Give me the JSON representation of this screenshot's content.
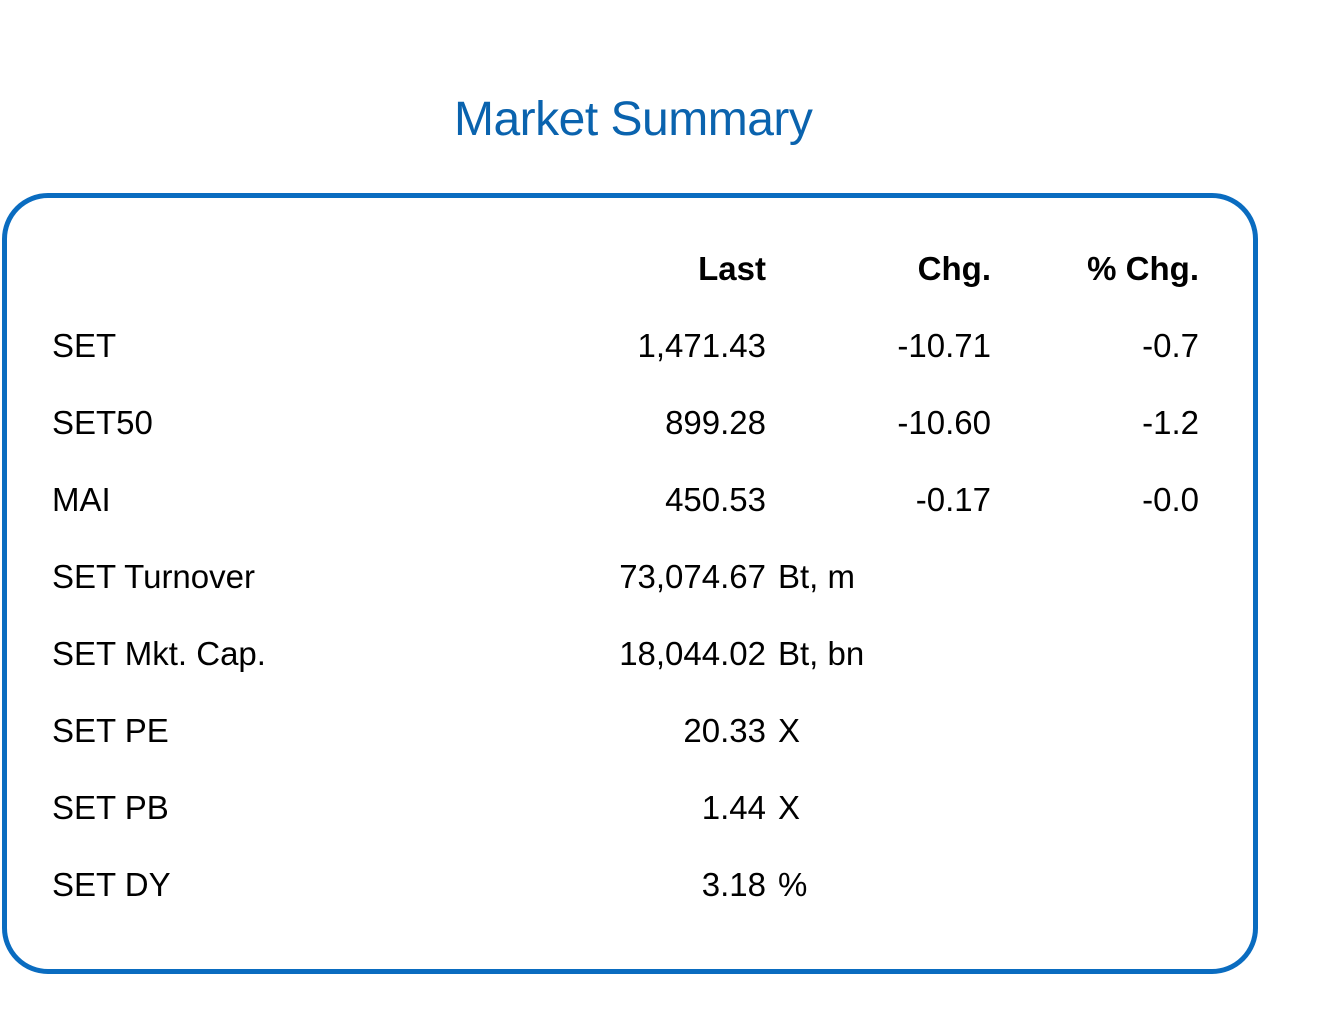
{
  "title": "Market Summary",
  "header": {
    "last": "Last",
    "chg": "Chg.",
    "pct_chg": "% Chg."
  },
  "rows": [
    {
      "label": "SET",
      "last": "1,471.43",
      "chg": "-10.71",
      "pct": "-0.7",
      "unit": ""
    },
    {
      "label": "SET50",
      "last": "899.28",
      "chg": "-10.60",
      "pct": "-1.2",
      "unit": ""
    },
    {
      "label": "MAI",
      "last": "450.53",
      "chg": "-0.17",
      "pct": "-0.0",
      "unit": ""
    },
    {
      "label": "SET Turnover",
      "last": "73,074.67",
      "chg": "",
      "pct": "",
      "unit": "Bt, m"
    },
    {
      "label": "SET Mkt. Cap.",
      "last": "18,044.02",
      "chg": "",
      "pct": "",
      "unit": "Bt, bn"
    },
    {
      "label": "SET PE",
      "last": "20.33",
      "chg": "",
      "pct": "",
      "unit": "X"
    },
    {
      "label": "SET PB",
      "last": "1.44",
      "chg": "",
      "pct": "",
      "unit": "X"
    },
    {
      "label": "SET DY",
      "last": "3.18",
      "chg": "",
      "pct": "",
      "unit": "%"
    }
  ],
  "colors": {
    "title": "#0a63ae",
    "border": "#0a6cc0"
  }
}
